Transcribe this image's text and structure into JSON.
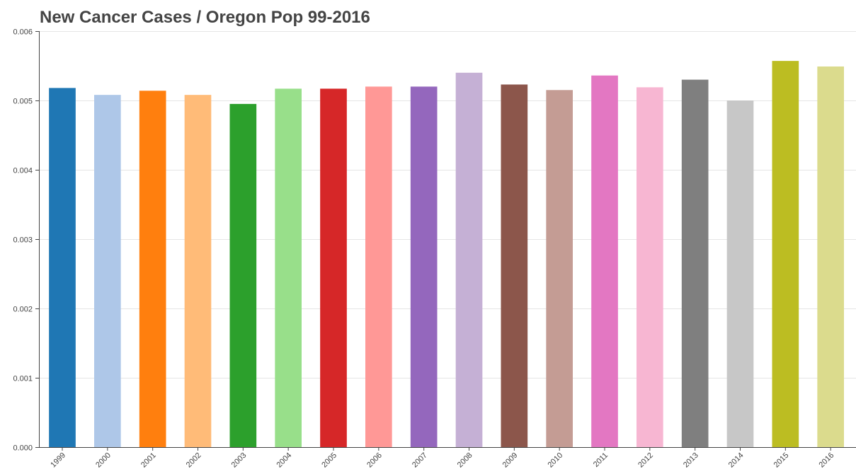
{
  "chart_data": {
    "type": "bar",
    "title": "New Cancer Cases / Oregon Pop 99-2016",
    "xlabel": "",
    "ylabel": "",
    "categories": [
      "1999",
      "2000",
      "2001",
      "2002",
      "2003",
      "2004",
      "2005",
      "2006",
      "2007",
      "2008",
      "2009",
      "2010",
      "2011",
      "2012",
      "2013",
      "2014",
      "2015",
      "2016"
    ],
    "values": [
      0.00518,
      0.00508,
      0.00514,
      0.00508,
      0.00495,
      0.00517,
      0.00517,
      0.0052,
      0.0052,
      0.0054,
      0.00523,
      0.00515,
      0.00536,
      0.00519,
      0.0053,
      0.005,
      0.00557,
      0.00549
    ],
    "colors": [
      "#1f77b4",
      "#aec7e8",
      "#ff7f0e",
      "#ffbb78",
      "#2ca02c",
      "#98df8a",
      "#d62728",
      "#ff9896",
      "#9467bd",
      "#c5b0d5",
      "#8c564b",
      "#c49c94",
      "#e377c2",
      "#f7b6d2",
      "#7f7f7f",
      "#c7c7c7",
      "#bcbd22",
      "#dbdb8d"
    ],
    "ylim": [
      0,
      0.006
    ],
    "yticks": [
      "0.000",
      "0.001",
      "0.002",
      "0.003",
      "0.004",
      "0.005",
      "0.006"
    ],
    "grid": true,
    "legend": "none"
  }
}
